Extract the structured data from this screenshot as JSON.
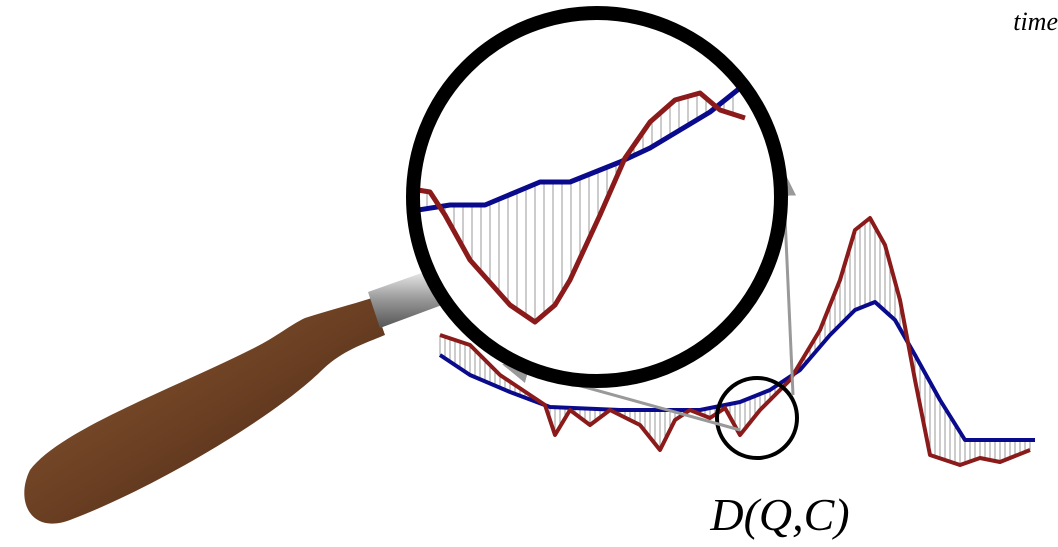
{
  "labels": {
    "time": "time",
    "distance": "D(Q,C)"
  }
}
